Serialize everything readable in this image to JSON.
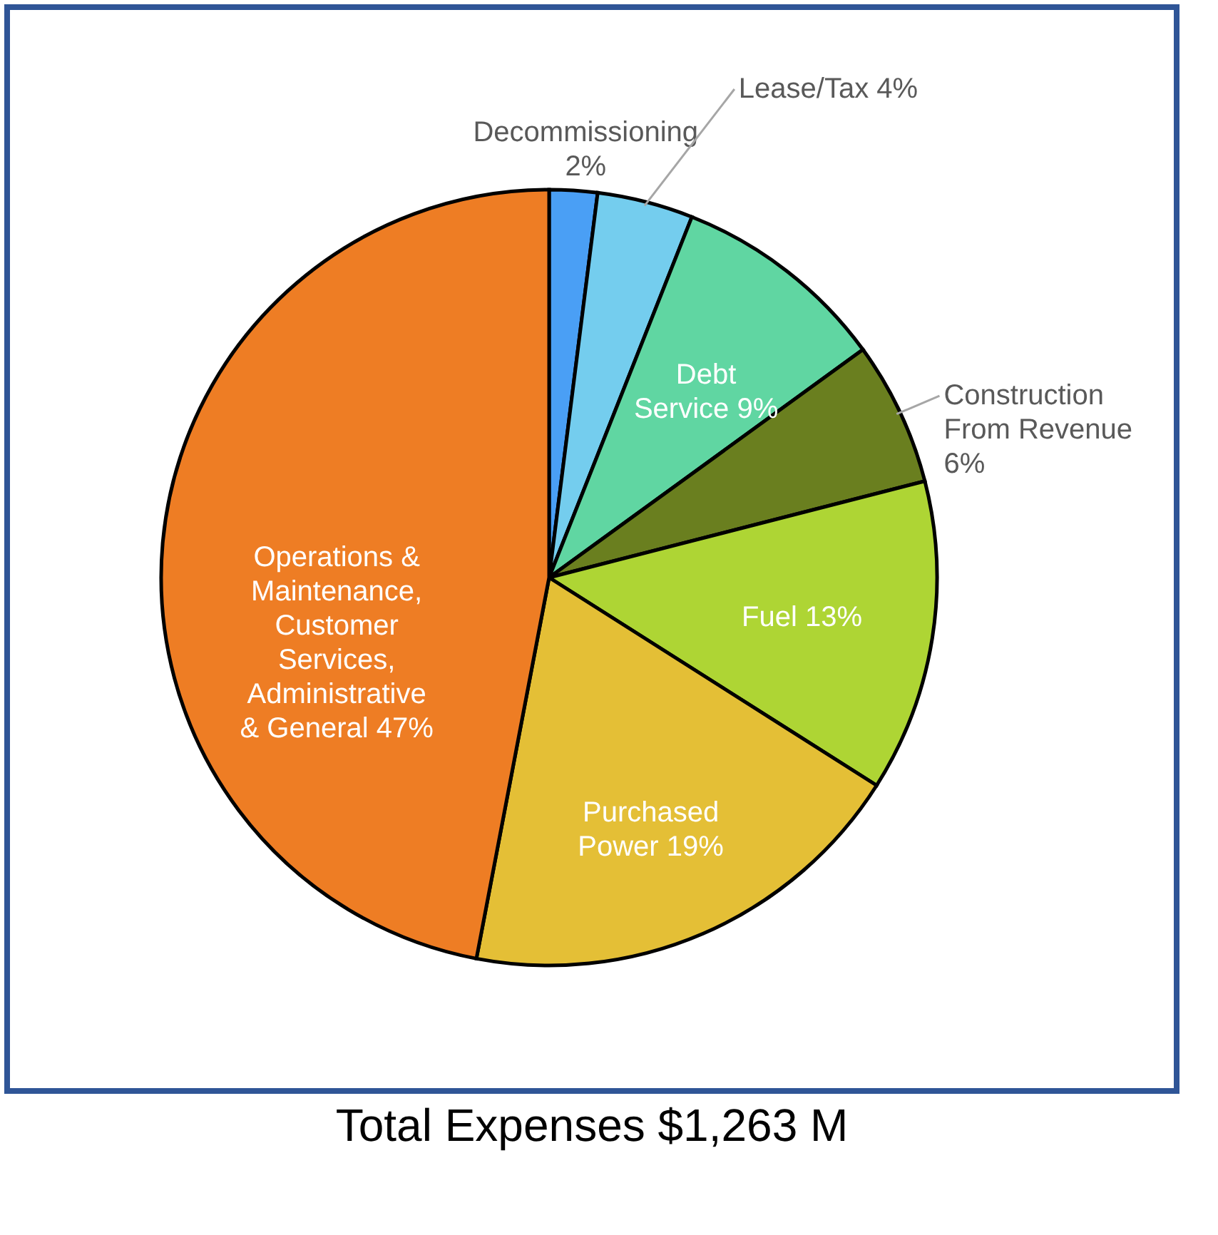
{
  "chart_data": {
    "type": "pie",
    "title": "Total Expenses $1,263 M",
    "categories": [
      "Decommissioning",
      "Lease/Tax",
      "Debt Service",
      "Construction From Revenue",
      "Fuel",
      "Purchased Power",
      "Operations & Maintenance, Customer Services, Administrative & General"
    ],
    "values": [
      2,
      4,
      9,
      6,
      13,
      19,
      47
    ],
    "value_labels": [
      "2%",
      "4%",
      "9%",
      "6%",
      "13%",
      "19%",
      "47%"
    ],
    "colors": [
      "#4a9ff5",
      "#74cdee",
      "#60d6a2",
      "#6a7f1f",
      "#aed534",
      "#e4bf36",
      "#ee7d24"
    ],
    "legend": false
  }
}
